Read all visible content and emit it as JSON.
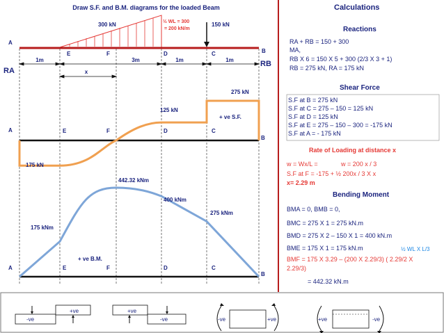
{
  "title": "Draw S.F. and B.M. diagrams for the loaded Beam",
  "calc_title": "Calculations",
  "colors": {
    "navy": "#1a237e",
    "red": "#e53935",
    "beam": "#b71c1c",
    "orange": "#f0a050",
    "blue": "#7ea6d8",
    "grid": "#555555"
  },
  "loads": {
    "udl_label": "300 kN",
    "wl_line1": "½ WL = 300",
    "wl_line2": "= 200 kN/m",
    "point_load": "150 kN"
  },
  "points": {
    "A": "A",
    "E": "E",
    "F": "F",
    "D": "D",
    "C": "C",
    "B": "B"
  },
  "reactions": {
    "left": "RA",
    "right": "RB"
  },
  "dims": {
    "d1": "1m",
    "d2": "3m",
    "d3": "1m",
    "d4": "1m",
    "x": "x"
  },
  "sfd": {
    "label_275": "275 kN",
    "label_125": "125 kN",
    "label_175": "175 kN",
    "label_pos": "+ ve S.F.",
    "values_kn": {
      "A": -175,
      "E": -175,
      "F": 0,
      "D": 125,
      "C_left": 125,
      "C_right": 275,
      "B": 275
    }
  },
  "bmd": {
    "label_max": "442.32 kNm",
    "label_400": "400 kNm",
    "label_275": "275 kNm",
    "label_175": "175 kNm",
    "label_pos": "+ ve B.M.",
    "values_knm": {
      "A": 0,
      "E": 175,
      "F": 442.32,
      "D": 400,
      "C": 275,
      "B": 0
    }
  },
  "sign_conv": {
    "pos": "+ve",
    "neg": "-ve"
  },
  "calculations": {
    "reactions": {
      "heading": "Reactions",
      "line1": "RA + RB = 150 + 300",
      "line2": "MA,",
      "line3": "RB X 6 = 150 X 5 + 300 (2/3 X 3 + 1)",
      "line4": "RB = 275 kN,     RA = 175 kN"
    },
    "shear": {
      "heading": "Shear Force",
      "line1": "S.F at B = 275 kN",
      "line2": "S.F at C = 275 – 150 = 125 kN",
      "line3": "S.F at D = 125 kN",
      "line4": "S.F at E = 275 – 150 – 300 = -175 kN",
      "line5": "S.F at A = - 175 kN"
    },
    "rate": {
      "heading": "Rate of Loading at distance x",
      "line1a": "w = Wx/L =",
      "line1b": "w = 200 x / 3",
      "line2": "S.F at F = -175 + ½ 200x / 3 X x",
      "line3": "x= 2.29 m"
    },
    "bending": {
      "heading": "Bending Moment",
      "line1": "BMA = 0, BMB = 0,",
      "line2": "BMC = 275 X 1 = 275 kN.m",
      "line3": "BMD = 275 X 2 – 150 X 1 = 400 kN.m",
      "line4": "BME = 175 X 1 = 175 kN.m",
      "note": "½ WL X L/3",
      "line5": "BMF =  175 X 3.29 – (200 X 2.29/3) ( 2.29/2 X",
      "line6": "2.29/3)",
      "line7": "= 442.32 kN.m"
    }
  }
}
